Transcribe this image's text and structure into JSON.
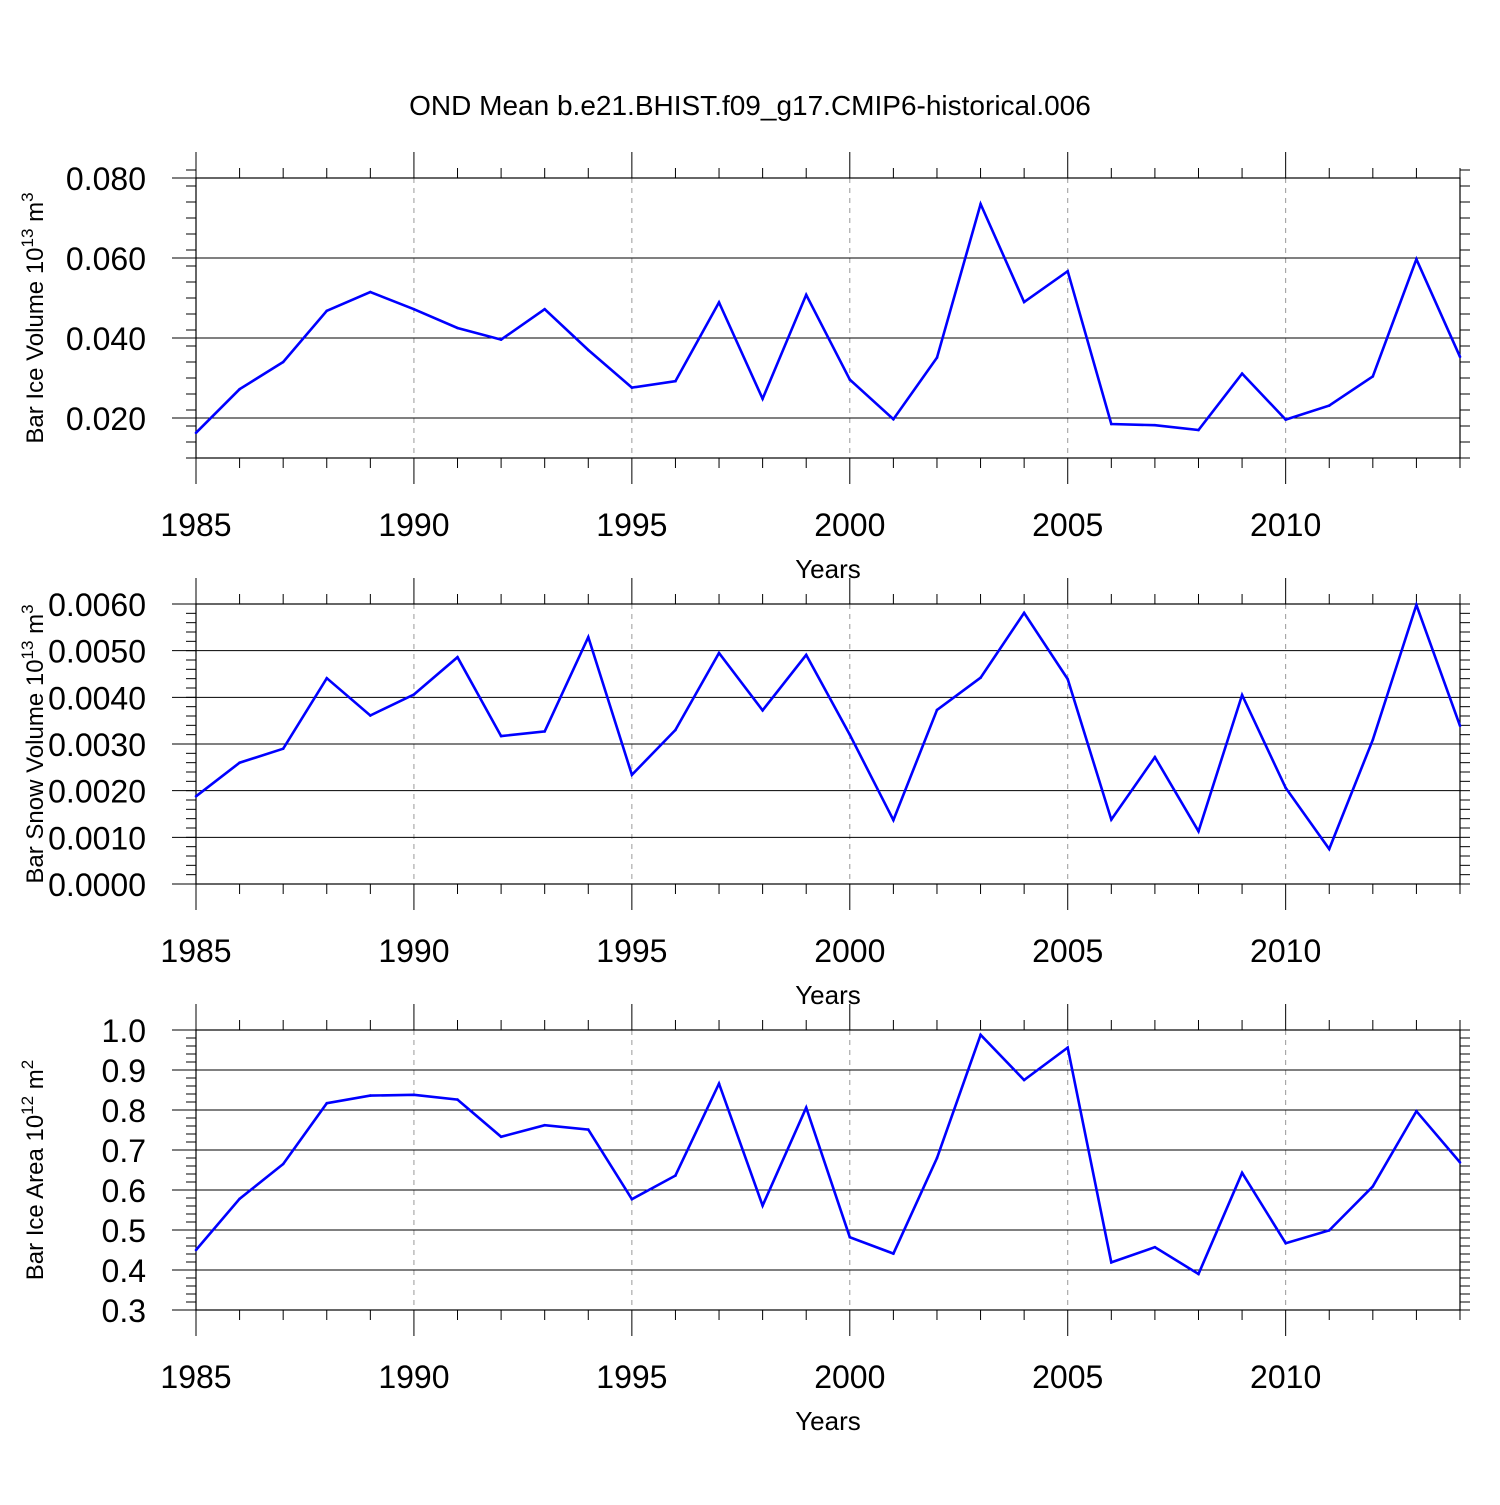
{
  "title": "OND Mean b.e21.BHIST.f09_g17.CMIP6-historical.006",
  "colors": {
    "line": "#0000ff",
    "axis": "#000000",
    "grid": "#999999",
    "background": "#ffffff"
  },
  "chart_data": [
    {
      "type": "line",
      "ylabel_main": "Bar Ice Volume 10",
      "ylabel_exp": "13",
      "ylabel_unit": " m",
      "ylabel_unit_exp": "3",
      "xlabel": "Years",
      "xlim": [
        1985,
        2014
      ],
      "ylim": [
        0.01,
        0.08
      ],
      "xticks": [
        1985,
        1990,
        1995,
        2000,
        2005,
        2010
      ],
      "xtick_labels": [
        "1985",
        "1990",
        "1995",
        "2000",
        "2005",
        "2010"
      ],
      "yticks": [
        0.02,
        0.04,
        0.06,
        0.08
      ],
      "ytick_labels": [
        "0.020",
        "0.040",
        "0.060",
        "0.080"
      ],
      "yminor_step": 0.004,
      "x": [
        1985,
        1986,
        1987,
        1988,
        1989,
        1990,
        1991,
        1992,
        1993,
        1994,
        1995,
        1996,
        1997,
        1998,
        1999,
        2000,
        2001,
        2002,
        2003,
        2004,
        2005,
        2006,
        2007,
        2008,
        2009,
        2010,
        2011,
        2012,
        2013,
        2014
      ],
      "values": [
        0.0163,
        0.0272,
        0.034,
        0.0468,
        0.0515,
        0.0472,
        0.0425,
        0.0396,
        0.0472,
        0.037,
        0.0276,
        0.0292,
        0.0489,
        0.0248,
        0.0508,
        0.0296,
        0.0197,
        0.0351,
        0.0735,
        0.049,
        0.0567,
        0.0185,
        0.0182,
        0.017,
        0.0311,
        0.0196,
        0.0231,
        0.0304,
        0.0597,
        0.0353
      ]
    },
    {
      "type": "line",
      "ylabel_main": "Bar Snow Volume 10",
      "ylabel_exp": "13",
      "ylabel_unit": " m",
      "ylabel_unit_exp": "3",
      "xlabel": "Years",
      "xlim": [
        1985,
        2014
      ],
      "ylim": [
        0.0,
        0.006
      ],
      "xticks": [
        1985,
        1990,
        1995,
        2000,
        2005,
        2010
      ],
      "xtick_labels": [
        "1985",
        "1990",
        "1995",
        "2000",
        "2005",
        "2010"
      ],
      "yticks": [
        0.0,
        0.001,
        0.002,
        0.003,
        0.004,
        0.005,
        0.006
      ],
      "ytick_labels": [
        "0.0000",
        "0.0010",
        "0.0020",
        "0.0030",
        "0.0040",
        "0.0050",
        "0.0060"
      ],
      "yminor_step": 0.0002,
      "x": [
        1985,
        1986,
        1987,
        1988,
        1989,
        1990,
        1991,
        1992,
        1993,
        1994,
        1995,
        1996,
        1997,
        1998,
        1999,
        2000,
        2001,
        2002,
        2003,
        2004,
        2005,
        2006,
        2007,
        2008,
        2009,
        2010,
        2011,
        2012,
        2013,
        2014
      ],
      "values": [
        0.00188,
        0.0026,
        0.0029,
        0.00441,
        0.00361,
        0.00406,
        0.00486,
        0.00317,
        0.00327,
        0.00529,
        0.00234,
        0.0033,
        0.00495,
        0.00372,
        0.00491,
        0.0032,
        0.00137,
        0.00373,
        0.00442,
        0.00581,
        0.00439,
        0.00138,
        0.00272,
        0.00113,
        0.00405,
        0.00206,
        0.00075,
        0.00309,
        0.00598,
        0.00339
      ]
    },
    {
      "type": "line",
      "ylabel_main": "Bar Ice Area 10",
      "ylabel_exp": "12",
      "ylabel_unit": " m",
      "ylabel_unit_exp": "2",
      "xlabel": "Years",
      "xlim": [
        1985,
        2014
      ],
      "ylim": [
        0.3,
        1.0
      ],
      "xticks": [
        1985,
        1990,
        1995,
        2000,
        2005,
        2010
      ],
      "xtick_labels": [
        "1985",
        "1990",
        "1995",
        "2000",
        "2005",
        "2010"
      ],
      "yticks": [
        0.3,
        0.4,
        0.5,
        0.6,
        0.7,
        0.8,
        0.9,
        1.0
      ],
      "ytick_labels": [
        "0.3",
        "0.4",
        "0.5",
        "0.6",
        "0.7",
        "0.8",
        "0.9",
        "1.0"
      ],
      "yminor_step": 0.02,
      "x": [
        1985,
        1986,
        1987,
        1988,
        1989,
        1990,
        1991,
        1992,
        1993,
        1994,
        1995,
        1996,
        1997,
        1998,
        1999,
        2000,
        2001,
        2002,
        2003,
        2004,
        2005,
        2006,
        2007,
        2008,
        2009,
        2010,
        2011,
        2012,
        2013,
        2014
      ],
      "values": [
        0.45,
        0.578,
        0.665,
        0.817,
        0.836,
        0.838,
        0.826,
        0.733,
        0.762,
        0.751,
        0.577,
        0.636,
        0.866,
        0.561,
        0.806,
        0.482,
        0.441,
        0.68,
        0.988,
        0.875,
        0.956,
        0.419,
        0.457,
        0.39,
        0.643,
        0.467,
        0.499,
        0.609,
        0.797,
        0.669
      ]
    }
  ]
}
